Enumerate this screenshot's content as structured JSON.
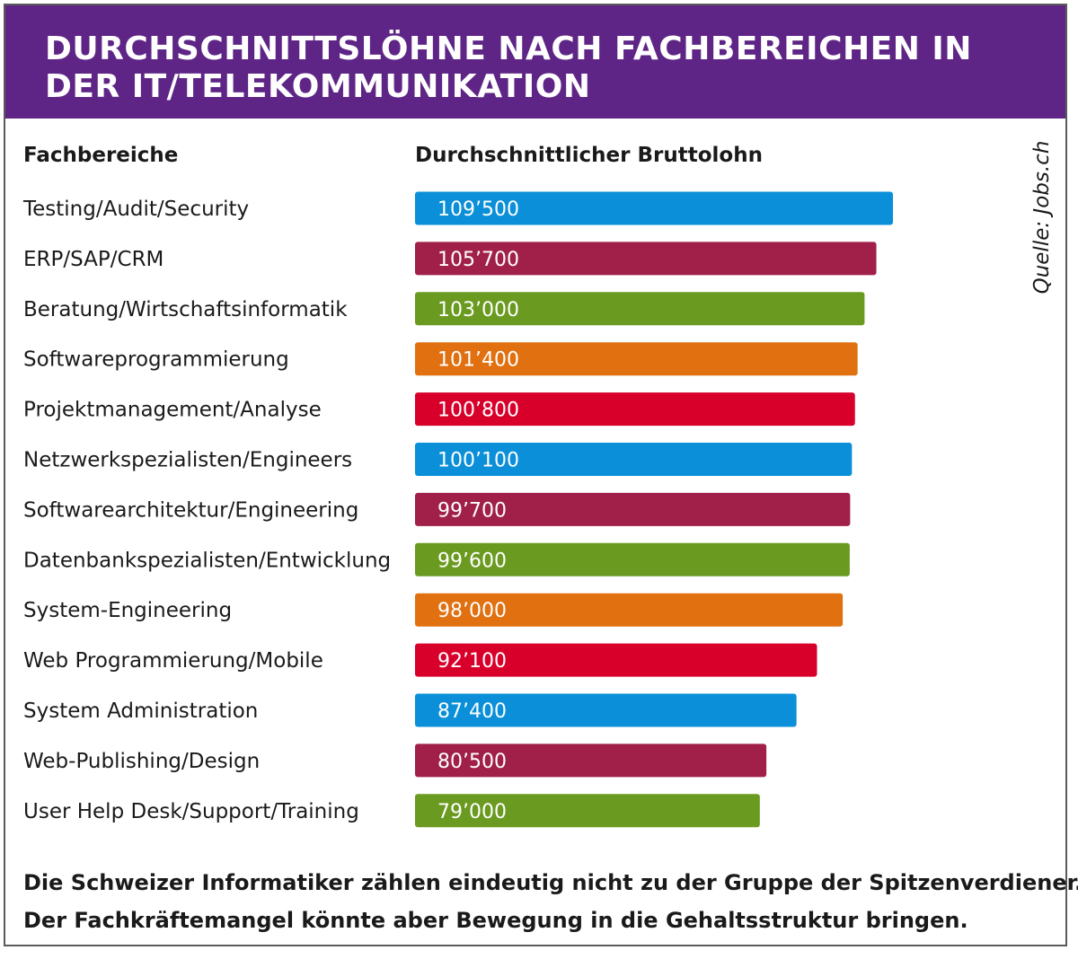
{
  "title": "DURCHSCHNITTSLÖHNE NACH FACHBEREICHEN IN DER IT/TELEKOMMUNIKATION",
  "columns": {
    "left": "Fachbereiche",
    "right": "Durchschnittlicher Bruttolohn"
  },
  "source": "Quelle: Jobs.ch",
  "footer": {
    "line1": "Die Schweizer Informatiker zählen eindeutig nicht zu der Gruppe der Spitzenverdiener.",
    "line2": "Der Fachkräftemangel könnte aber Bewegung in die Gehaltsstruktur bringen."
  },
  "colors": {
    "header_bg": "#5e2586",
    "blue": "#0a8fd8",
    "maroon": "#a0204a",
    "green": "#6a9a1f",
    "orange": "#e07010",
    "red": "#d8002b"
  },
  "chart_data": {
    "type": "bar",
    "orientation": "horizontal",
    "xlim": [
      0,
      109500
    ],
    "categories": [
      "Testing/Audit/Security",
      "ERP/SAP/CRM",
      "Beratung/Wirtschaftsinformatik",
      "Softwareprogrammierung",
      "Projektmanagement/Analyse",
      "Netzwerkspezialisten/Engineers",
      "Softwarearchitektur/Engineering",
      "Datenbankspezialisten/Entwicklung",
      "System-Engineering",
      "Web Programmierung/Mobile",
      "System Administration",
      "Web-Publishing/Design",
      "User Help Desk/Support/Training"
    ],
    "values": [
      109500,
      105700,
      103000,
      101400,
      100800,
      100100,
      99700,
      99600,
      98000,
      92100,
      87400,
      80500,
      79000
    ],
    "value_labels": [
      "109’500",
      "105’700",
      "103’000",
      "101’400",
      "100’800",
      "100’100",
      "99’700",
      "99’600",
      "98’000",
      "92’100",
      "87’400",
      "80’500",
      "79’000"
    ],
    "bar_colors": [
      "#0a8fd8",
      "#a0204a",
      "#6a9a1f",
      "#e07010",
      "#d8002b",
      "#0a8fd8",
      "#a0204a",
      "#6a9a1f",
      "#e07010",
      "#d8002b",
      "#0a8fd8",
      "#a0204a",
      "#6a9a1f"
    ]
  }
}
